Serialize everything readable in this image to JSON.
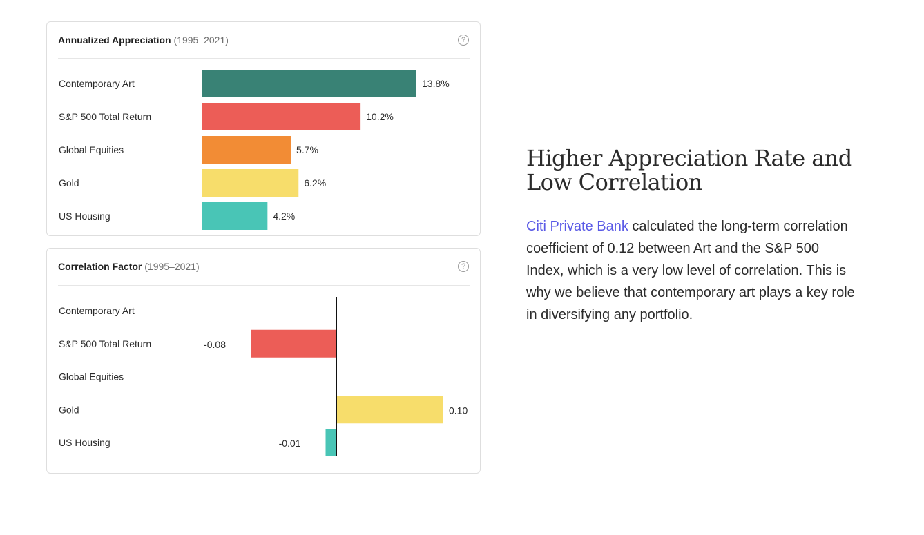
{
  "cards": [
    {
      "title": "Annualized Appreciation",
      "subtitle": "(1995–2021)"
    },
    {
      "title": "Correlation Factor",
      "subtitle": "(1995–2021)"
    }
  ],
  "help_icon_glyph": "?",
  "chart_data": [
    {
      "type": "bar",
      "orientation": "horizontal",
      "title": "Annualized Appreciation (1995–2021)",
      "categories": [
        "Contemporary Art",
        "S&P 500 Total Return",
        "Global Equities",
        "Gold",
        "US Housing"
      ],
      "values": [
        13.8,
        10.2,
        5.7,
        6.2,
        4.2
      ],
      "value_labels": [
        "13.8%",
        "10.2%",
        "5.7%",
        "6.2%",
        "4.2%"
      ],
      "colors": [
        "#398275",
        "#ec5d57",
        "#f28c35",
        "#f7dd6b",
        "#49c5b6"
      ],
      "xlim": [
        0,
        13.8
      ]
    },
    {
      "type": "bar",
      "orientation": "horizontal",
      "title": "Correlation Factor (1995–2021)",
      "categories": [
        "Contemporary Art",
        "S&P 500 Total Return",
        "Global Equities",
        "Gold",
        "US Housing"
      ],
      "values": [
        null,
        -0.08,
        null,
        0.1,
        -0.01
      ],
      "value_labels": [
        "",
        "-0.08",
        "",
        "0.10",
        "-0.01"
      ],
      "colors": [
        "#398275",
        "#ec5d57",
        "#f28c35",
        "#f7dd6b",
        "#49c5b6"
      ],
      "xlim": [
        -0.08,
        0.1
      ],
      "zero_line": true
    }
  ],
  "description": {
    "heading": "Higher Appreciation Rate and Low Correlation",
    "link_text": "Citi Private Bank",
    "body": " calculated the long-term correlation coefficient of 0.12 between Art and the S&P 500 Index, which is a very low level of correlation. This is why we believe that contemporary art plays a key role in diversifying any portfolio.",
    "link_color": "#5a5ae6"
  }
}
